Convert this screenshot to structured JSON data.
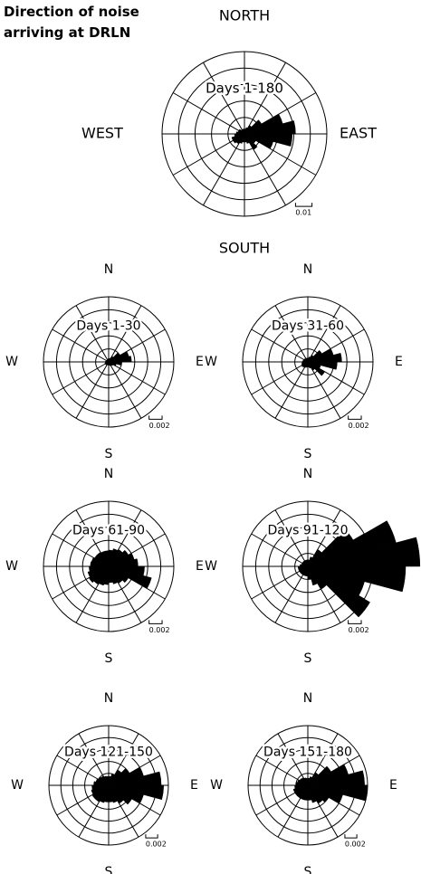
{
  "chart_data": [
    {
      "type": "rose",
      "title": "Direction of noise arriving at DRLN",
      "subtitle": "Days 1-180",
      "directions": [
        "NORTH",
        "EAST",
        "SOUTH",
        "WEST"
      ],
      "xlim": [
        0,
        360
      ],
      "rlim": [
        0,
        0.05
      ],
      "rticks": [
        0.01,
        0.02,
        0.03,
        0.04,
        0.05
      ],
      "scale_bar": 0.01,
      "color": "#000000",
      "values": [
        0.003,
        0.004,
        0.006,
        0.012,
        0.024,
        0.031,
        0.029,
        0.018,
        0.008,
        0.011,
        0.006,
        0.005,
        0.005,
        0.006,
        0.007,
        0.008,
        0.008,
        0.006,
        0.005,
        0.004,
        0.004,
        0.003,
        0.003,
        0.003
      ]
    },
    {
      "type": "rose",
      "subtitle": "Days 1-30",
      "directions": [
        "N",
        "E",
        "S",
        "W"
      ],
      "xlim": [
        0,
        360
      ],
      "rlim": [
        0,
        0.01
      ],
      "rticks": [
        0.002,
        0.004,
        0.006,
        0.008,
        0.01
      ],
      "scale_bar": 0.002,
      "color": "#000000",
      "values": [
        0.0005,
        0.0006,
        0.001,
        0.002,
        0.0032,
        0.0035,
        0.002,
        0.0012,
        0.0008,
        0.0007,
        0.0006,
        0.0005,
        0.0005,
        0.0005,
        0.0006,
        0.0006,
        0.0006,
        0.0005,
        0.0005,
        0.0004,
        0.0004,
        0.0004,
        0.0004,
        0.0005
      ]
    },
    {
      "type": "rose",
      "subtitle": "Days 31-60",
      "directions": [
        "N",
        "E",
        "S",
        "W"
      ],
      "xlim": [
        0,
        360
      ],
      "rlim": [
        0,
        0.01
      ],
      "rticks": [
        0.002,
        0.004,
        0.006,
        0.008,
        0.01
      ],
      "scale_bar": 0.002,
      "color": "#000000",
      "values": [
        0.0006,
        0.0008,
        0.0012,
        0.0025,
        0.004,
        0.0052,
        0.0045,
        0.002,
        0.003,
        0.0015,
        0.001,
        0.0008,
        0.0008,
        0.0009,
        0.001,
        0.0011,
        0.001,
        0.0009,
        0.0008,
        0.0007,
        0.0007,
        0.0006,
        0.0006,
        0.0006
      ]
    },
    {
      "type": "rose",
      "subtitle": "Days 61-90",
      "directions": [
        "N",
        "E",
        "S",
        "W"
      ],
      "xlim": [
        0,
        360
      ],
      "rlim": [
        0,
        0.01
      ],
      "rticks": [
        0.002,
        0.004,
        0.006,
        0.008,
        0.01
      ],
      "scale_bar": 0.002,
      "color": "#000000",
      "values": [
        0.0025,
        0.0028,
        0.003,
        0.0035,
        0.004,
        0.0045,
        0.0055,
        0.0068,
        0.0035,
        0.003,
        0.0028,
        0.0025,
        0.0028,
        0.003,
        0.0032,
        0.0035,
        0.0033,
        0.003,
        0.0028,
        0.0027,
        0.0025,
        0.0025,
        0.0024,
        0.0024
      ]
    },
    {
      "type": "rose",
      "subtitle": "Days 91-120",
      "directions": [
        "N",
        "E",
        "S",
        "W"
      ],
      "xlim": [
        0,
        360
      ],
      "rlim": [
        0,
        0.01
      ],
      "rticks": [
        0.002,
        0.004,
        0.006,
        0.008,
        0.01
      ],
      "scale_bar": 0.002,
      "color": "#000000",
      "values": [
        0.001,
        0.0015,
        0.003,
        0.008,
        0.014,
        0.0172,
        0.015,
        0.009,
        0.011,
        0.004,
        0.003,
        0.002,
        0.0015,
        0.0015,
        0.0015,
        0.0015,
        0.0015,
        0.0015,
        0.0012,
        0.001,
        0.001,
        0.001,
        0.001,
        0.001
      ]
    },
    {
      "type": "rose",
      "subtitle": "Days 121-150",
      "directions": [
        "N",
        "E",
        "S",
        "W"
      ],
      "xlim": [
        0,
        360
      ],
      "rlim": [
        0,
        0.01
      ],
      "rticks": [
        0.002,
        0.004,
        0.006,
        0.008,
        0.01
      ],
      "scale_bar": 0.002,
      "color": "#000000",
      "values": [
        0.0015,
        0.002,
        0.003,
        0.004,
        0.006,
        0.0088,
        0.0092,
        0.006,
        0.0045,
        0.0035,
        0.003,
        0.0028,
        0.0028,
        0.003,
        0.0032,
        0.0032,
        0.003,
        0.0028,
        0.0025,
        0.0022,
        0.002,
        0.0018,
        0.0016,
        0.0015
      ]
    },
    {
      "type": "rose",
      "subtitle": "Days 151-180",
      "directions": [
        "N",
        "E",
        "S",
        "W"
      ],
      "xlim": [
        0,
        360
      ],
      "rlim": [
        0,
        0.01
      ],
      "rticks": [
        0.002,
        0.004,
        0.006,
        0.008,
        0.01
      ],
      "scale_bar": 0.002,
      "color": "#000000",
      "values": [
        0.0012,
        0.0015,
        0.0025,
        0.0045,
        0.007,
        0.0095,
        0.01,
        0.006,
        0.004,
        0.0035,
        0.003,
        0.0025,
        0.0025,
        0.0025,
        0.0025,
        0.0025,
        0.0025,
        0.0022,
        0.002,
        0.0018,
        0.0016,
        0.0015,
        0.0013,
        0.0012
      ]
    }
  ]
}
